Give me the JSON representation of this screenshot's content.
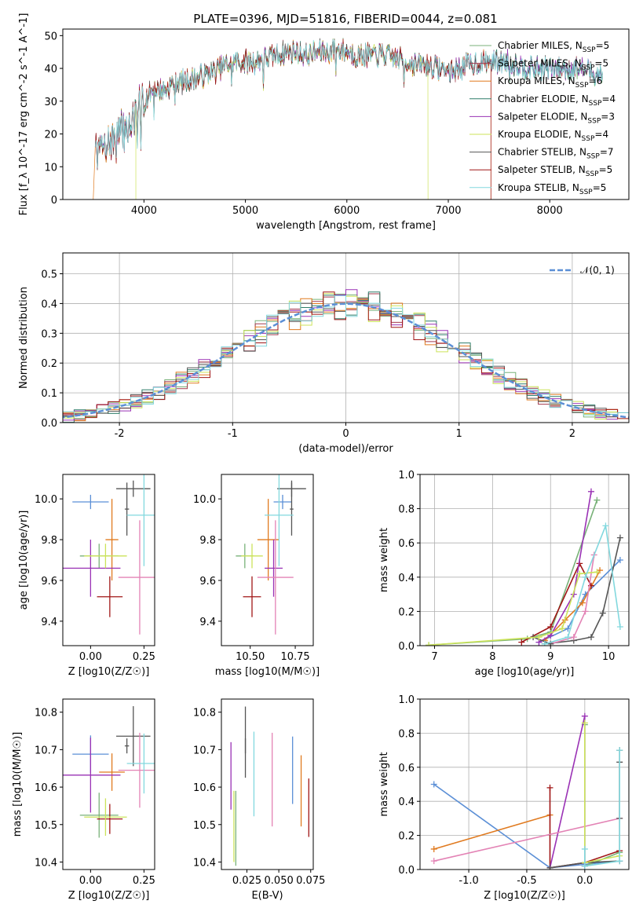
{
  "title": "PLATE=0396, MJD=51816, FIBERID=0044, z=0.081",
  "colors": {
    "chabrier_miles": "#79b279",
    "salpeter_miles": "#a33a4d",
    "kroupa_miles": "#e07a1f",
    "chabrier_elodie": "#2e7d69",
    "salpeter_elodie": "#9a32b5",
    "kroupa_elodie": "#cce35a",
    "chabrier_stelib": "#555555",
    "salpeter_stelib": "#a01616",
    "kroupa_stelib": "#82d8de",
    "gaussian": "#5b8fd6",
    "points": [
      "#5b8fd6",
      "#e07a1f",
      "#79b279",
      "#a01616",
      "#9a32b5",
      "#555555",
      "#e383b5",
      "#555555",
      "#cce35a",
      "#82d8de"
    ],
    "grid": "#b0b0b0"
  },
  "legend_spectrum": [
    {
      "label": "Chabrier MILES, N",
      "sub": "SSP",
      "eq": "=5"
    },
    {
      "label": "Salpeter MILES, N",
      "sub": "SSP",
      "eq": "=5"
    },
    {
      "label": "Kroupa MILES, N",
      "sub": "SSP",
      "eq": "=6"
    },
    {
      "label": "Chabrier ELODIE, N",
      "sub": "SSP",
      "eq": "=4"
    },
    {
      "label": "Salpeter ELODIE, N",
      "sub": "SSP",
      "eq": "=3"
    },
    {
      "label": "Kroupa ELODIE, N",
      "sub": "SSP",
      "eq": "=4"
    },
    {
      "label": "Chabrier STELIB, N",
      "sub": "SSP",
      "eq": "=7"
    },
    {
      "label": "Salpeter STELIB, N",
      "sub": "SSP",
      "eq": "=5"
    },
    {
      "label": "Kroupa STELIB, N",
      "sub": "SSP",
      "eq": "=5"
    }
  ],
  "legend_hist": "𝒩(0, 1)",
  "chart_data": [
    {
      "id": "spectrum",
      "type": "line",
      "xlabel": "wavelength [Angstrom, rest frame]",
      "ylabel": "Flux [f_λ 10^-17 erg cm^-2 s^-1 A^-1]",
      "xlim": [
        3200,
        8780
      ],
      "ylim": [
        0,
        52
      ],
      "xticks": [
        4000,
        5000,
        6000,
        7000,
        8000
      ],
      "yticks": [
        0,
        10,
        20,
        30,
        40,
        50
      ],
      "envelope": [
        [
          3520,
          14
        ],
        [
          3600,
          16
        ],
        [
          3700,
          18
        ],
        [
          3800,
          21
        ],
        [
          3900,
          24
        ],
        [
          4000,
          30
        ],
        [
          4100,
          34
        ],
        [
          4200,
          33
        ],
        [
          4300,
          36
        ],
        [
          4400,
          36
        ],
        [
          4500,
          37
        ],
        [
          4600,
          38
        ],
        [
          4700,
          39
        ],
        [
          4800,
          41
        ],
        [
          4900,
          42
        ],
        [
          5000,
          42
        ],
        [
          5100,
          42
        ],
        [
          5200,
          43
        ],
        [
          5300,
          44
        ],
        [
          5400,
          45
        ],
        [
          5500,
          45
        ],
        [
          5600,
          44
        ],
        [
          5700,
          45
        ],
        [
          5800,
          45
        ],
        [
          5900,
          46
        ],
        [
          6000,
          45
        ],
        [
          6100,
          44
        ],
        [
          6200,
          44
        ],
        [
          6300,
          44
        ],
        [
          6400,
          44
        ],
        [
          6500,
          43
        ],
        [
          6600,
          42
        ],
        [
          6700,
          41
        ],
        [
          6800,
          41
        ],
        [
          6900,
          40
        ],
        [
          7000,
          39
        ],
        [
          7100,
          40
        ],
        [
          7200,
          41
        ],
        [
          7300,
          42
        ],
        [
          7400,
          42
        ],
        [
          7500,
          42
        ],
        [
          7600,
          42
        ],
        [
          7700,
          41
        ],
        [
          7800,
          40
        ],
        [
          7900,
          40
        ],
        [
          8000,
          40
        ],
        [
          8100,
          40
        ],
        [
          8200,
          40
        ],
        [
          8300,
          40
        ],
        [
          8400,
          39
        ],
        [
          8500,
          38
        ]
      ],
      "series": [
        {
          "name": "Chabrier MILES",
          "start": 3520,
          "end": 8520
        },
        {
          "name": "Salpeter MILES",
          "start": 3520,
          "end": 8520
        },
        {
          "name": "Kroupa MILES",
          "start": 3500,
          "end": 7420
        },
        {
          "name": "Chabrier ELODIE",
          "start": 3520,
          "end": 8520
        },
        {
          "name": "Salpeter ELODIE",
          "start": 3520,
          "end": 8520
        },
        {
          "name": "Kroupa ELODIE",
          "start": 3920,
          "end": 6800
        },
        {
          "name": "Chabrier STELIB",
          "start": 3520,
          "end": 8520
        },
        {
          "name": "Salpeter STELIB",
          "start": 3520,
          "end": 7420
        },
        {
          "name": "Kroupa STELIB",
          "start": 3520,
          "end": 8520
        }
      ]
    },
    {
      "id": "residual-histogram",
      "type": "line",
      "xlabel": "(data-model)/error",
      "ylabel": "Normed distribution",
      "xlim": [
        -2.5,
        2.5
      ],
      "ylim": [
        0,
        0.57
      ],
      "xticks": [
        -2,
        -1,
        0,
        1,
        2
      ],
      "yticks": [
        0.0,
        0.1,
        0.2,
        0.3,
        0.4,
        0.5
      ],
      "bin_width": 0.1,
      "gaussian": {
        "mean": 0,
        "sigma": 1
      }
    },
    {
      "id": "age-vs-Z",
      "type": "scatter",
      "xlabel": "Z [log10(Z/Z☉)]",
      "ylabel": "age [log10(age/yr)]",
      "xlim": [
        -0.13,
        0.3
      ],
      "ylim": [
        9.28,
        10.12
      ],
      "xticks": [
        0.0,
        0.25
      ],
      "yticks": [
        9.4,
        9.6,
        9.8,
        10.0
      ],
      "points": [
        {
          "x": 0.0,
          "y": 9.985,
          "xerr": 0.085,
          "yerr": 0.035
        },
        {
          "x": 0.1,
          "y": 9.8,
          "xerr": 0.03,
          "yerr": 0.2
        },
        {
          "x": 0.04,
          "y": 9.72,
          "xerr": 0.09,
          "yerr": 0.06
        },
        {
          "x": 0.09,
          "y": 9.52,
          "xerr": 0.06,
          "yerr": 0.1
        },
        {
          "x": 0.0,
          "y": 9.66,
          "xerr": 0.14,
          "yerr": 0.14
        },
        {
          "x": 0.2,
          "y": 10.05,
          "xerr": 0.08,
          "yerr": 0.04
        },
        {
          "x": 0.23,
          "y": 9.615,
          "xerr": 0.1,
          "yerr": 0.28
        },
        {
          "x": 0.17,
          "y": 9.95,
          "xerr": 0.01,
          "yerr": 0.13
        },
        {
          "x": 0.07,
          "y": 9.72,
          "xerr": 0.1,
          "yerr": 0.06
        },
        {
          "x": 0.25,
          "y": 9.92,
          "xerr": 0.08,
          "yerr": 0.25
        }
      ]
    },
    {
      "id": "age-vs-mass",
      "type": "scatter",
      "xlabel": "mass [log10(M/M☉)]",
      "ylabel": "",
      "xlim": [
        10.34,
        10.85
      ],
      "ylim": [
        9.28,
        10.12
      ],
      "xticks": [
        10.5,
        10.75
      ],
      "yticks": [
        9.4,
        9.6,
        9.8,
        10.0
      ],
      "points": [
        {
          "x": 10.68,
          "y": 9.985,
          "xerr": 0.05,
          "yerr": 0.035
        },
        {
          "x": 10.6,
          "y": 9.8,
          "xerr": 0.06,
          "yerr": 0.2
        },
        {
          "x": 10.47,
          "y": 9.72,
          "xerr": 0.05,
          "yerr": 0.06
        },
        {
          "x": 10.51,
          "y": 9.52,
          "xerr": 0.05,
          "yerr": 0.1
        },
        {
          "x": 10.63,
          "y": 9.66,
          "xerr": 0.05,
          "yerr": 0.14
        },
        {
          "x": 10.73,
          "y": 10.05,
          "xerr": 0.08,
          "yerr": 0.04
        },
        {
          "x": 10.64,
          "y": 9.615,
          "xerr": 0.1,
          "yerr": 0.28
        },
        {
          "x": 10.73,
          "y": 9.95,
          "xerr": 0.01,
          "yerr": 0.13
        },
        {
          "x": 10.51,
          "y": 9.72,
          "xerr": 0.06,
          "yerr": 0.06
        },
        {
          "x": 10.66,
          "y": 9.92,
          "xerr": 0.08,
          "yerr": 0.25
        }
      ]
    },
    {
      "id": "mass-weight-vs-age",
      "type": "line",
      "xlabel": "age [log10(age/yr)]",
      "ylabel": "mass weight",
      "xlim": [
        6.75,
        10.35
      ],
      "ylim": [
        0,
        1
      ],
      "xticks": [
        7,
        8,
        9,
        10
      ],
      "yticks": [
        0.0,
        0.2,
        0.4,
        0.6,
        0.8,
        1.0
      ],
      "series": [
        {
          "x": [
            8.8,
            9.3,
            9.6,
            10.2
          ],
          "y": [
            0.02,
            0.1,
            0.3,
            0.5
          ]
        },
        {
          "x": [
            8.9,
            9.25,
            9.55,
            9.85
          ],
          "y": [
            0.03,
            0.15,
            0.25,
            0.44
          ]
        },
        {
          "x": [
            6.9,
            8.6,
            9.0,
            9.8
          ],
          "y": [
            0.003,
            0.04,
            0.08,
            0.85
          ]
        },
        {
          "x": [
            8.5,
            9.0,
            9.5,
            9.7
          ],
          "y": [
            0.02,
            0.11,
            0.48,
            0.35
          ]
        },
        {
          "x": [
            8.8,
            9.0,
            9.4,
            9.7
          ],
          "y": [
            0.02,
            0.06,
            0.3,
            0.9
          ]
        },
        {
          "x": [
            8.9,
            9.4,
            9.7,
            9.9,
            10.2
          ],
          "y": [
            0.01,
            0.03,
            0.05,
            0.19,
            0.63
          ]
        },
        {
          "x": [
            9.0,
            9.4,
            9.6,
            9.75
          ],
          "y": [
            0.01,
            0.05,
            0.2,
            0.53
          ]
        },
        {
          "x": [
            8.7,
            9.0
          ],
          "y": [
            0.05,
            0.01
          ]
        },
        {
          "x": [
            6.9,
            8.8,
            9.2,
            9.5,
            9.8
          ],
          "y": [
            0.003,
            0.05,
            0.1,
            0.42,
            0.43
          ]
        },
        {
          "x": [
            8.9,
            9.3,
            9.6,
            9.95,
            10.2
          ],
          "y": [
            0.01,
            0.05,
            0.4,
            0.7,
            0.11
          ]
        }
      ]
    },
    {
      "id": "mass-vs-Z",
      "type": "scatter",
      "xlabel": "Z [log10(Z/Z☉)]",
      "ylabel": "mass [log10(M/M☉)]",
      "xlim": [
        -0.13,
        0.3
      ],
      "ylim": [
        10.38,
        10.835
      ],
      "xticks": [
        0.0,
        0.25
      ],
      "yticks": [
        10.4,
        10.5,
        10.6,
        10.7,
        10.8
      ],
      "points": [
        {
          "x": 0.0,
          "y": 10.688,
          "xerr": 0.085,
          "yerr": 0.05
        },
        {
          "x": 0.1,
          "y": 10.64,
          "xerr": 0.06,
          "yerr": 0.05
        },
        {
          "x": 0.04,
          "y": 10.525,
          "xerr": 0.09,
          "yerr": 0.06
        },
        {
          "x": 0.09,
          "y": 10.515,
          "xerr": 0.06,
          "yerr": 0.04
        },
        {
          "x": 0.0,
          "y": 10.632,
          "xerr": 0.14,
          "yerr": 0.1
        },
        {
          "x": 0.2,
          "y": 10.736,
          "xerr": 0.08,
          "yerr": 0.08
        },
        {
          "x": 0.23,
          "y": 10.645,
          "xerr": 0.1,
          "yerr": 0.1
        },
        {
          "x": 0.17,
          "y": 10.71,
          "xerr": 0.01,
          "yerr": 0.02
        },
        {
          "x": 0.07,
          "y": 10.52,
          "xerr": 0.1,
          "yerr": 0.05
        },
        {
          "x": 0.25,
          "y": 10.663,
          "xerr": 0.08,
          "yerr": 0.08
        }
      ]
    },
    {
      "id": "mass-vs-EBV",
      "type": "scatter",
      "xlabel": "E(B-V)",
      "ylabel": "",
      "xlim": [
        0.005,
        0.077
      ],
      "ylim": [
        10.38,
        10.835
      ],
      "xticks": [
        0.025,
        0.05,
        0.075
      ],
      "yticks": [
        10.4,
        10.5,
        10.6,
        10.7,
        10.8
      ],
      "points": [
        {
          "x": 0.0608,
          "y": 10.645,
          "xerr": 0,
          "yerr": 0.09
        },
        {
          "x": 0.0675,
          "y": 10.59,
          "xerr": 0,
          "yerr": 0.095
        },
        {
          "x": 0.0163,
          "y": 10.49,
          "xerr": 0,
          "yerr": 0.1
        },
        {
          "x": 0.0735,
          "y": 10.545,
          "xerr": 0,
          "yerr": 0.078
        },
        {
          "x": 0.0125,
          "y": 10.63,
          "xerr": 0,
          "yerr": 0.09
        },
        {
          "x": 0.0238,
          "y": 10.72,
          "xerr": 0,
          "yerr": 0.095
        },
        {
          "x": 0.0448,
          "y": 10.62,
          "xerr": 0,
          "yerr": 0.125
        },
        {
          "x": 0.0238,
          "y": 10.71,
          "xerr": 0,
          "yerr": 0.02
        },
        {
          "x": 0.0148,
          "y": 10.495,
          "xerr": 0,
          "yerr": 0.095
        },
        {
          "x": 0.0305,
          "y": 10.635,
          "xerr": 0,
          "yerr": 0.113
        }
      ]
    },
    {
      "id": "mass-weight-vs-Z",
      "type": "line",
      "xlabel": "Z [log10(Z/Z☉)]",
      "ylabel": "mass weight",
      "xlim": [
        -1.42,
        0.38
      ],
      "ylim": [
        0,
        1
      ],
      "xticks": [
        -1.0,
        -0.5,
        0.0
      ],
      "yticks": [
        0.0,
        0.2,
        0.4,
        0.6,
        0.8,
        1.0
      ],
      "series": [
        {
          "x": [
            -1.3,
            -0.3,
            0.0,
            0.3
          ],
          "y": [
            0.5,
            0.01,
            0.03,
            0.05
          ]
        },
        {
          "x": [
            -1.3,
            -0.3
          ],
          "y": [
            0.12,
            0.32
          ]
        },
        {
          "x": [
            0.0,
            0.0,
            0.3
          ],
          "y": [
            0.85,
            0.02,
            0.1
          ]
        },
        {
          "x": [
            -0.3,
            -0.3,
            0.0,
            0.3
          ],
          "y": [
            0.48,
            0.01,
            0.04,
            0.11
          ]
        },
        {
          "x": [
            -0.3,
            0.0,
            0.0
          ],
          "y": [
            0.01,
            0.9,
            0.02
          ]
        },
        {
          "x": [
            -0.3,
            0.0,
            0.3,
            0.3
          ],
          "y": [
            0.01,
            0.04,
            0.05,
            0.63
          ]
        },
        {
          "x": [
            -1.3,
            0.3
          ],
          "y": [
            0.05,
            0.3
          ]
        },
        {
          "x": [
            0.3,
            0.3
          ],
          "y": [
            0.3,
            0.7
          ]
        },
        {
          "x": [
            0.0,
            0.0,
            0.3
          ],
          "y": [
            0.86,
            0.04,
            0.08
          ]
        },
        {
          "x": [
            0.0,
            0.0,
            0.3,
            0.3
          ],
          "y": [
            0.12,
            0.02,
            0.05,
            0.7
          ]
        }
      ]
    }
  ]
}
